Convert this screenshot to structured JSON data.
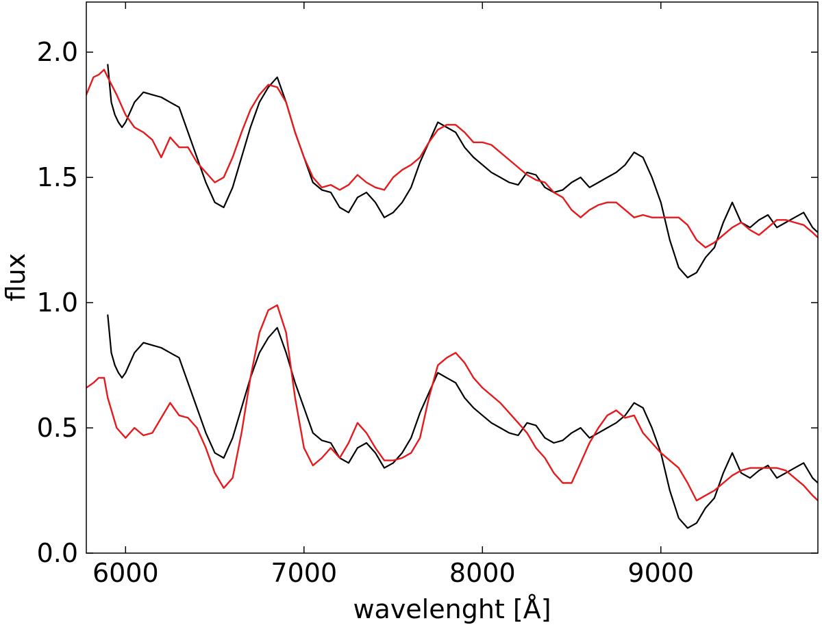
{
  "chart_data": {
    "type": "line",
    "title": "",
    "xlabel": "wavelenght [Å]",
    "ylabel": "flux",
    "xlim": [
      5780,
      9880
    ],
    "ylim": [
      0.0,
      2.2
    ],
    "xticks": [
      6000,
      7000,
      8000,
      9000
    ],
    "yticks": [
      0.0,
      0.5,
      1.0,
      1.5,
      2.0
    ],
    "xtick_labels": [
      "6000",
      "7000",
      "8000",
      "9000"
    ],
    "ytick_labels": [
      "0.0",
      "0.5",
      "1.0",
      "1.5",
      "2.0"
    ],
    "grid": false,
    "legend": "none",
    "colors": {
      "observed": "#000000",
      "model": "#e41a1c"
    },
    "series": [
      {
        "color": "#000000",
        "role": "observed-upper",
        "x": [
          5900,
          5920,
          5940,
          5960,
          5980,
          6000,
          6050,
          6100,
          6150,
          6200,
          6250,
          6300,
          6350,
          6400,
          6450,
          6500,
          6550,
          6600,
          6650,
          6700,
          6750,
          6800,
          6850,
          6900,
          6950,
          7000,
          7050,
          7100,
          7150,
          7200,
          7250,
          7300,
          7350,
          7400,
          7450,
          7500,
          7550,
          7600,
          7650,
          7700,
          7750,
          7800,
          7850,
          7900,
          7950,
          8000,
          8050,
          8100,
          8150,
          8200,
          8250,
          8300,
          8350,
          8400,
          8450,
          8500,
          8550,
          8600,
          8650,
          8700,
          8750,
          8800,
          8850,
          8900,
          8950,
          9000,
          9050,
          9100,
          9150,
          9200,
          9250,
          9300,
          9350,
          9400,
          9450,
          9500,
          9550,
          9600,
          9650,
          9700,
          9750,
          9800,
          9850,
          9880
        ],
        "y": [
          1.95,
          1.8,
          1.75,
          1.72,
          1.7,
          1.72,
          1.8,
          1.84,
          1.83,
          1.82,
          1.8,
          1.78,
          1.68,
          1.58,
          1.48,
          1.4,
          1.38,
          1.46,
          1.58,
          1.7,
          1.8,
          1.86,
          1.9,
          1.8,
          1.68,
          1.58,
          1.48,
          1.45,
          1.44,
          1.38,
          1.36,
          1.42,
          1.44,
          1.4,
          1.34,
          1.36,
          1.4,
          1.46,
          1.56,
          1.64,
          1.72,
          1.7,
          1.68,
          1.62,
          1.58,
          1.55,
          1.52,
          1.5,
          1.48,
          1.47,
          1.52,
          1.51,
          1.46,
          1.44,
          1.45,
          1.48,
          1.5,
          1.46,
          1.48,
          1.5,
          1.52,
          1.55,
          1.6,
          1.58,
          1.5,
          1.4,
          1.25,
          1.14,
          1.1,
          1.12,
          1.18,
          1.22,
          1.32,
          1.4,
          1.32,
          1.3,
          1.33,
          1.35,
          1.3,
          1.32,
          1.34,
          1.36,
          1.3,
          1.28
        ]
      },
      {
        "color": "#e41a1c",
        "role": "model-upper",
        "x": [
          5780,
          5820,
          5850,
          5880,
          5900,
          5950,
          6000,
          6050,
          6100,
          6150,
          6200,
          6250,
          6300,
          6350,
          6400,
          6450,
          6500,
          6550,
          6600,
          6650,
          6700,
          6750,
          6800,
          6850,
          6900,
          6950,
          7000,
          7050,
          7100,
          7150,
          7200,
          7250,
          7300,
          7350,
          7400,
          7450,
          7500,
          7550,
          7600,
          7650,
          7700,
          7750,
          7800,
          7850,
          7900,
          7950,
          8000,
          8050,
          8100,
          8150,
          8200,
          8250,
          8300,
          8350,
          8400,
          8450,
          8500,
          8550,
          8600,
          8650,
          8700,
          8750,
          8800,
          8850,
          8900,
          8950,
          9000,
          9050,
          9100,
          9150,
          9200,
          9250,
          9300,
          9350,
          9400,
          9450,
          9500,
          9550,
          9600,
          9650,
          9700,
          9750,
          9800,
          9850,
          9880
        ],
        "y": [
          1.83,
          1.9,
          1.91,
          1.93,
          1.9,
          1.83,
          1.75,
          1.7,
          1.68,
          1.65,
          1.58,
          1.66,
          1.62,
          1.62,
          1.56,
          1.52,
          1.48,
          1.5,
          1.58,
          1.68,
          1.77,
          1.83,
          1.87,
          1.86,
          1.8,
          1.68,
          1.58,
          1.5,
          1.46,
          1.47,
          1.45,
          1.47,
          1.51,
          1.48,
          1.46,
          1.45,
          1.5,
          1.53,
          1.55,
          1.58,
          1.64,
          1.69,
          1.71,
          1.71,
          1.68,
          1.64,
          1.64,
          1.63,
          1.6,
          1.57,
          1.54,
          1.51,
          1.49,
          1.48,
          1.44,
          1.42,
          1.37,
          1.34,
          1.37,
          1.39,
          1.4,
          1.4,
          1.37,
          1.34,
          1.35,
          1.34,
          1.34,
          1.34,
          1.34,
          1.31,
          1.25,
          1.22,
          1.24,
          1.27,
          1.3,
          1.32,
          1.29,
          1.27,
          1.3,
          1.33,
          1.33,
          1.32,
          1.31,
          1.28,
          1.26
        ]
      },
      {
        "color": "#000000",
        "role": "observed-lower",
        "x": [
          5900,
          5920,
          5940,
          5960,
          5980,
          6000,
          6050,
          6100,
          6150,
          6200,
          6250,
          6300,
          6350,
          6400,
          6450,
          6500,
          6550,
          6600,
          6650,
          6700,
          6750,
          6800,
          6850,
          6900,
          6950,
          7000,
          7050,
          7100,
          7150,
          7200,
          7250,
          7300,
          7350,
          7400,
          7450,
          7500,
          7550,
          7600,
          7650,
          7700,
          7750,
          7800,
          7850,
          7900,
          7950,
          8000,
          8050,
          8100,
          8150,
          8200,
          8250,
          8300,
          8350,
          8400,
          8450,
          8500,
          8550,
          8600,
          8650,
          8700,
          8750,
          8800,
          8850,
          8900,
          8950,
          9000,
          9050,
          9100,
          9150,
          9200,
          9250,
          9300,
          9350,
          9400,
          9450,
          9500,
          9550,
          9600,
          9650,
          9700,
          9750,
          9800,
          9850,
          9880
        ],
        "y": [
          0.95,
          0.8,
          0.75,
          0.72,
          0.7,
          0.72,
          0.8,
          0.84,
          0.83,
          0.82,
          0.8,
          0.78,
          0.68,
          0.58,
          0.48,
          0.4,
          0.38,
          0.46,
          0.58,
          0.7,
          0.8,
          0.86,
          0.9,
          0.8,
          0.68,
          0.58,
          0.48,
          0.45,
          0.44,
          0.38,
          0.36,
          0.42,
          0.44,
          0.4,
          0.34,
          0.36,
          0.4,
          0.46,
          0.56,
          0.64,
          0.72,
          0.7,
          0.68,
          0.62,
          0.58,
          0.55,
          0.52,
          0.5,
          0.48,
          0.47,
          0.52,
          0.51,
          0.46,
          0.44,
          0.45,
          0.48,
          0.5,
          0.46,
          0.48,
          0.5,
          0.52,
          0.55,
          0.6,
          0.58,
          0.5,
          0.4,
          0.25,
          0.14,
          0.1,
          0.12,
          0.18,
          0.22,
          0.32,
          0.4,
          0.32,
          0.3,
          0.33,
          0.35,
          0.3,
          0.32,
          0.34,
          0.36,
          0.3,
          0.28
        ]
      },
      {
        "color": "#e41a1c",
        "role": "model-lower",
        "x": [
          5780,
          5820,
          5850,
          5880,
          5900,
          5950,
          6000,
          6050,
          6100,
          6150,
          6200,
          6250,
          6300,
          6350,
          6400,
          6450,
          6500,
          6550,
          6600,
          6650,
          6700,
          6750,
          6800,
          6850,
          6900,
          6950,
          7000,
          7050,
          7100,
          7150,
          7200,
          7250,
          7300,
          7350,
          7400,
          7450,
          7500,
          7550,
          7600,
          7650,
          7700,
          7750,
          7800,
          7850,
          7900,
          7950,
          8000,
          8050,
          8100,
          8150,
          8200,
          8250,
          8300,
          8350,
          8400,
          8450,
          8500,
          8550,
          8600,
          8650,
          8700,
          8750,
          8800,
          8850,
          8900,
          8950,
          9000,
          9050,
          9100,
          9150,
          9200,
          9250,
          9300,
          9350,
          9400,
          9450,
          9500,
          9550,
          9600,
          9650,
          9700,
          9750,
          9800,
          9850,
          9880
        ],
        "y": [
          0.66,
          0.68,
          0.7,
          0.7,
          0.62,
          0.5,
          0.46,
          0.5,
          0.47,
          0.48,
          0.54,
          0.6,
          0.55,
          0.54,
          0.5,
          0.42,
          0.32,
          0.26,
          0.3,
          0.48,
          0.7,
          0.88,
          0.97,
          0.99,
          0.88,
          0.62,
          0.42,
          0.35,
          0.38,
          0.42,
          0.38,
          0.44,
          0.52,
          0.48,
          0.42,
          0.37,
          0.37,
          0.38,
          0.4,
          0.46,
          0.62,
          0.75,
          0.78,
          0.8,
          0.76,
          0.7,
          0.66,
          0.63,
          0.6,
          0.56,
          0.52,
          0.48,
          0.42,
          0.38,
          0.32,
          0.28,
          0.28,
          0.36,
          0.44,
          0.5,
          0.55,
          0.57,
          0.54,
          0.55,
          0.48,
          0.44,
          0.4,
          0.37,
          0.34,
          0.28,
          0.21,
          0.23,
          0.25,
          0.28,
          0.31,
          0.33,
          0.34,
          0.34,
          0.34,
          0.34,
          0.33,
          0.3,
          0.27,
          0.23,
          0.21
        ]
      }
    ]
  }
}
